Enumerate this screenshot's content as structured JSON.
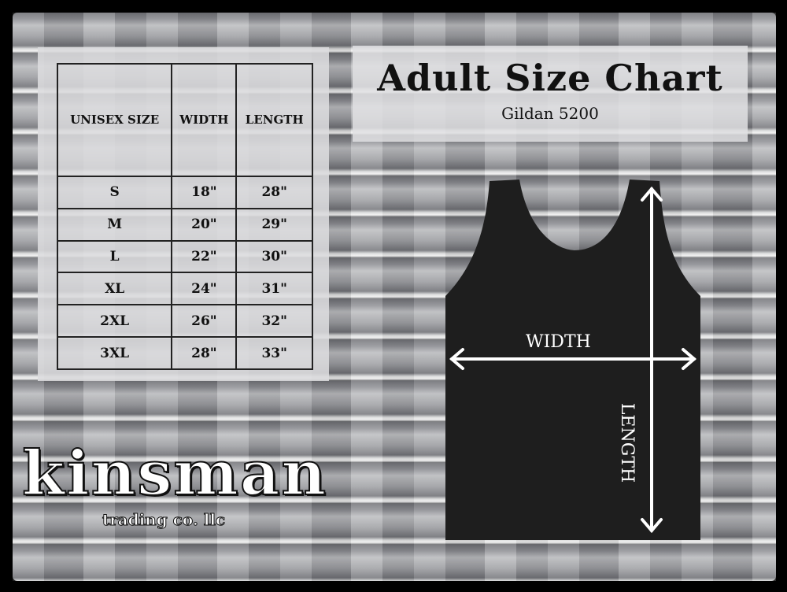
{
  "title": "Adult Size Chart",
  "subtitle": "Gildan 5200",
  "table": {
    "headers": [
      "UNISEX SIZE",
      "WIDTH",
      "LENGTH"
    ],
    "rows": [
      [
        "S",
        "18\"",
        "28\""
      ],
      [
        "M",
        "20\"",
        "29\""
      ],
      [
        "L",
        "22\"",
        "30\""
      ],
      [
        "XL",
        "24\"",
        "31\""
      ],
      [
        "2XL",
        "26\"",
        "32\""
      ],
      [
        "3XL",
        "28\"",
        "33\""
      ]
    ]
  },
  "diagram": {
    "width_label": "WIDTH",
    "length_label": "LENGTH",
    "garment_color": "#1e1e1e",
    "arrow_color": "#ffffff"
  },
  "logo": {
    "name": "kinsman",
    "tagline": "trading co. llc"
  }
}
